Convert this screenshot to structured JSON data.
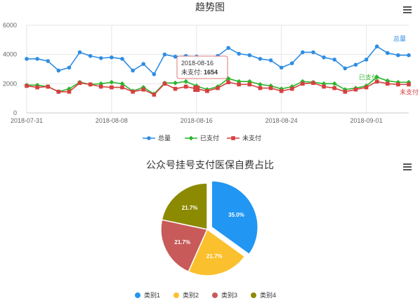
{
  "colors": {
    "total": "#2f8de4",
    "paid": "#2cb52c",
    "unpaid": "#d64040",
    "pie": [
      "#2196f3",
      "#fbc02d",
      "#c85a5a",
      "#8c8a00"
    ]
  },
  "chart_data": [
    {
      "type": "line",
      "title": "趋势图",
      "xlabel": "",
      "ylabel": "",
      "x": [
        "2018-07-31",
        "2018-08-01",
        "2018-08-02",
        "2018-08-03",
        "2018-08-04",
        "2018-08-05",
        "2018-08-06",
        "2018-08-07",
        "2018-08-08",
        "2018-08-09",
        "2018-08-10",
        "2018-08-11",
        "2018-08-12",
        "2018-08-13",
        "2018-08-14",
        "2018-08-15",
        "2018-08-16",
        "2018-08-17",
        "2018-08-18",
        "2018-08-19",
        "2018-08-20",
        "2018-08-21",
        "2018-08-22",
        "2018-08-23",
        "2018-08-24",
        "2018-08-25",
        "2018-08-26",
        "2018-08-27",
        "2018-08-28",
        "2018-08-29",
        "2018-08-30",
        "2018-08-31",
        "2018-09-01",
        "2018-09-02",
        "2018-09-03",
        "2018-09-04",
        "2018-09-05"
      ],
      "x_ticks": [
        "2018-07-31",
        "2018-08-08",
        "2018-08-16",
        "2018-08-24",
        "2018-09-01"
      ],
      "ylim": [
        0,
        6000
      ],
      "y_ticks": [
        0,
        2000,
        4000,
        6000
      ],
      "grid": true,
      "legend_position": "bottom-center",
      "series": [
        {
          "name": "总量",
          "values": [
            3700,
            3700,
            3550,
            2900,
            3100,
            4150,
            3900,
            3750,
            3800,
            3700,
            2900,
            3350,
            2650,
            4000,
            3850,
            3900,
            3850,
            3500,
            3900,
            4450,
            4050,
            3950,
            3700,
            3600,
            3100,
            3400,
            4150,
            4150,
            3800,
            3650,
            3050,
            3300,
            3650,
            4550,
            4100,
            3950,
            3950
          ]
        },
        {
          "name": "已支付",
          "values": [
            1900,
            1900,
            1800,
            1450,
            1650,
            2100,
            1950,
            2000,
            2100,
            2000,
            1500,
            1750,
            1300,
            2050,
            2050,
            2150,
            1850,
            1600,
            1800,
            2350,
            2150,
            2150,
            1950,
            1850,
            1650,
            1800,
            2150,
            2100,
            2000,
            2000,
            1600,
            1700,
            1850,
            2450,
            2200,
            2100,
            2100
          ]
        },
        {
          "name": "未支付",
          "values": [
            1850,
            1750,
            1800,
            1450,
            1450,
            2050,
            1950,
            1800,
            1750,
            1750,
            1450,
            1600,
            1250,
            2000,
            1650,
            1800,
            1654,
            1500,
            1700,
            2100,
            1950,
            1950,
            1700,
            1700,
            1500,
            1650,
            2000,
            2050,
            1800,
            1700,
            1450,
            1600,
            1750,
            2150,
            2000,
            1950,
            1950
          ]
        }
      ],
      "tooltip": {
        "date": "2018-08-16",
        "series": "未支付",
        "value": "1654",
        "index": 16
      },
      "end_labels": [
        "总量",
        "已支付",
        "未支付"
      ]
    },
    {
      "type": "pie",
      "title": "公众号挂号支付医保自费占比",
      "legend_position": "bottom-center",
      "slices": [
        {
          "name": "类别1",
          "value": 35.0,
          "label": "35.0%"
        },
        {
          "name": "类别2",
          "value": 21.7,
          "label": "21.7%"
        },
        {
          "name": "类别3",
          "value": 21.7,
          "label": "21.7%"
        },
        {
          "name": "类别4",
          "value": 21.7,
          "label": "21.7%"
        }
      ]
    }
  ]
}
